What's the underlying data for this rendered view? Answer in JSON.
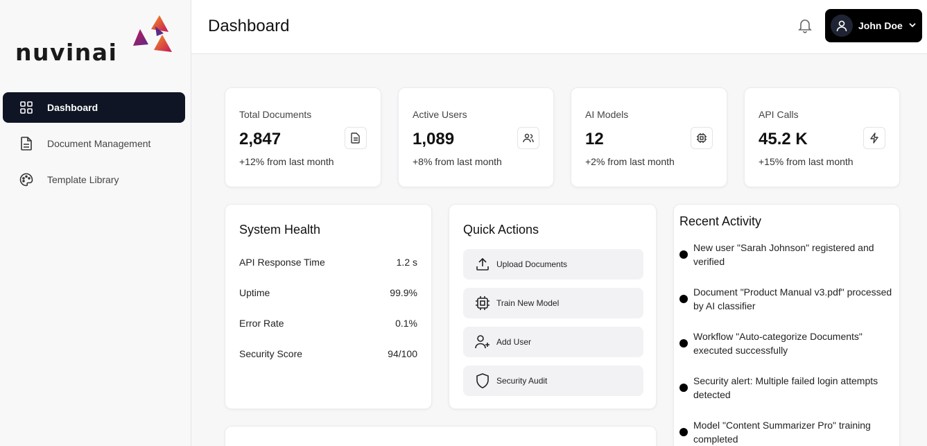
{
  "app": {
    "logo_text": "nuvinai",
    "colors": {
      "sidebar_active": "#0f1524",
      "logo_orange": "#f7931e",
      "logo_magenta": "#c2185b",
      "logo_purple": "#5b2a86"
    }
  },
  "sidebar": {
    "items": [
      {
        "label": "Dashboard",
        "icon": "grid-icon",
        "active": true
      },
      {
        "label": "Document Management",
        "icon": "file-icon",
        "active": false
      },
      {
        "label": "Template Library",
        "icon": "palette-icon",
        "active": false
      }
    ]
  },
  "header": {
    "title": "Dashboard",
    "notification_icon": "bell-icon",
    "user": {
      "name": "John Doe",
      "icon": "user-icon"
    }
  },
  "stats": [
    {
      "label": "Total Documents",
      "value": "2,847",
      "change": "+12% from last month",
      "icon": "document-icon"
    },
    {
      "label": "Active Users",
      "value": "1,089",
      "change": "+8% from last month",
      "icon": "users-icon"
    },
    {
      "label": "AI Models",
      "value": "12",
      "change": "+2% from last month",
      "icon": "cpu-icon"
    },
    {
      "label": "API Calls",
      "value": "45.2 K",
      "change": "+15% from last month",
      "icon": "lightning-icon"
    }
  ],
  "system_health": {
    "title": "System Health",
    "rows": [
      {
        "label": "API Response Time",
        "value": "1.2 s"
      },
      {
        "label": "Uptime",
        "value": "99.9%"
      },
      {
        "label": "Error Rate",
        "value": "0.1%"
      },
      {
        "label": "Security Score",
        "value": "94/100"
      }
    ]
  },
  "quick_actions": {
    "title": "Quick Actions",
    "items": [
      {
        "label": "Upload Documents",
        "icon": "upload-icon"
      },
      {
        "label": "Train New Model",
        "icon": "cpu-icon"
      },
      {
        "label": "Add User",
        "icon": "user-plus-icon"
      },
      {
        "label": "Security Audit",
        "icon": "shield-icon"
      }
    ]
  },
  "recent_activity": {
    "title": "Recent Activity",
    "items": [
      {
        "text": "New user \"Sarah Johnson\" registered and verified"
      },
      {
        "text": "Document \"Product Manual v3.pdf\" processed by AI classifier"
      },
      {
        "text": "Workflow \"Auto-categorize Documents\" executed successfully"
      },
      {
        "text": "Security alert: Multiple failed login attempts detected"
      },
      {
        "text": "Model \"Content Summarizer Pro\" training completed"
      }
    ]
  }
}
